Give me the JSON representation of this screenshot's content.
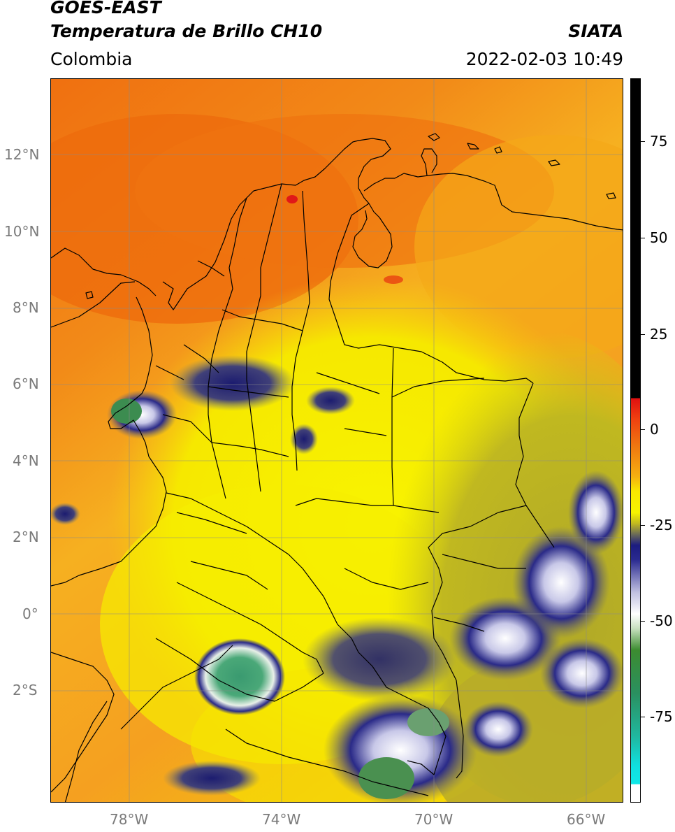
{
  "header": {
    "title1": "GOES-EAST",
    "title2": "Temperatura de Brillo CH10",
    "brand": "SIATA",
    "region": "Colombia",
    "datetime": "2022-02-03 10:49"
  },
  "map": {
    "lat_ticks": [
      "12°N",
      "10°N",
      "8°N",
      "6°N",
      "4°N",
      "2°N",
      "0°",
      "2°S"
    ],
    "lon_ticks": [
      "78°W",
      "74°W",
      "70°W",
      "66°W"
    ]
  },
  "colorbar": {
    "labels": [
      "75",
      "50",
      "25",
      "0",
      "-25",
      "-50",
      "-75"
    ],
    "values": [
      75,
      50,
      25,
      0,
      -25,
      -50,
      -75
    ],
    "range": [
      -100,
      90
    ]
  },
  "colors": {
    "ocean_orange": "#f07a10",
    "warm_orange": "#f5a020",
    "yellow": "#f6f200",
    "olive": "#b8b020",
    "navy": "#1a1a78",
    "white_cloud": "#f0f0f0",
    "green_cloud": "#3c8c50",
    "cyan": "#10e0e0",
    "red": "#e01818",
    "black": "#000000"
  }
}
